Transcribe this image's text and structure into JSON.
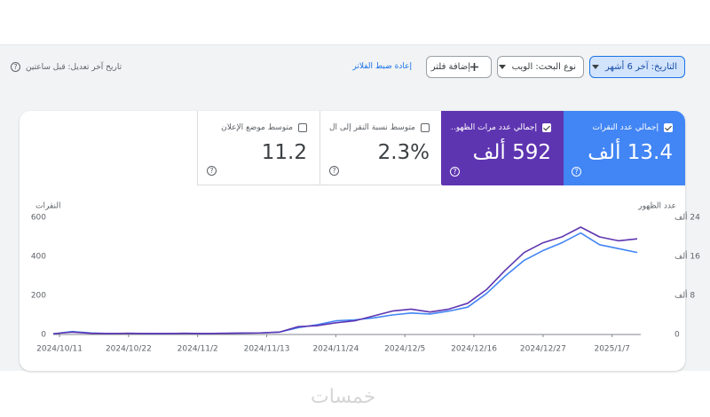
{
  "toolbar": {
    "date_filter": "التاريخ: آخر 6 أشهر",
    "search_type": "نوع البحث: الويب",
    "add_filter": "إضافة فلتر",
    "reset_filters": "إعادة ضبط الفلاتر",
    "last_updated": "تاريخ آخر تعديل: قبل ساعتين"
  },
  "metrics": [
    {
      "label": "إجمالي عدد النقرات",
      "value": "13.4 ألف"
    },
    {
      "label": "إجمالي عدد مرات الظهو...",
      "value": "592 ألف"
    },
    {
      "label": "متوسط نسبة النقر إلى ال...",
      "value": "2.3%"
    },
    {
      "label": "متوسط موضع الإعلان",
      "value": "11.2"
    }
  ],
  "watermark": "خمسات",
  "chart_data": {
    "type": "line",
    "y_label": "النقرات",
    "y2_label": "عدد الظهور",
    "x": [
      "2024/10/10",
      "2024/10/13",
      "2024/10/16",
      "2024/10/19",
      "2024/10/22",
      "2024/10/25",
      "2024/10/28",
      "2024/10/31",
      "2024/11/3",
      "2024/11/6",
      "2024/11/9",
      "2024/11/12",
      "2024/11/15",
      "2024/11/18",
      "2024/11/21",
      "2024/11/24",
      "2024/11/27",
      "2024/11/30",
      "2024/12/3",
      "2024/12/6",
      "2024/12/9",
      "2024/12/12",
      "2024/12/15",
      "2024/12/18",
      "2024/12/21",
      "2024/12/24",
      "2024/12/27",
      "2024/12/30",
      "2025/1/2",
      "2025/1/5",
      "2025/1/8",
      "2025/1/11"
    ],
    "xlim": [
      "2024/10/10",
      "2025/1/11"
    ],
    "xticks": [
      "2024/10/11",
      "2024/10/22",
      "2024/11/2",
      "2024/11/13",
      "2024/11/24",
      "2024/12/5",
      "2024/12/16",
      "2024/12/27",
      "2025/1/7"
    ],
    "ylim": [
      0,
      600
    ],
    "yticks": [
      0,
      200,
      400,
      600
    ],
    "y2lim": [
      0,
      24000
    ],
    "y2ticks": [
      0,
      {
        "value": 8000,
        "label": "8 ألف"
      },
      {
        "value": 16000,
        "label": "16 ألف"
      },
      {
        "value": 24000,
        "label": "24 ألف"
      }
    ],
    "grid": false,
    "series": [
      {
        "name": "إجمالي عدد النقرات",
        "color": "#4285f4",
        "values": [
          3,
          15,
          8,
          5,
          6,
          5,
          5,
          6,
          5,
          6,
          7,
          8,
          12,
          35,
          50,
          70,
          75,
          85,
          100,
          110,
          105,
          120,
          140,
          210,
          300,
          380,
          430,
          470,
          520,
          460,
          440,
          420
        ]
      },
      {
        "name": "إجمالي عدد مرات الظهو...",
        "color": "#5e35b1",
        "axis": "y2",
        "values": [
          160,
          480,
          240,
          200,
          240,
          200,
          200,
          240,
          200,
          240,
          280,
          320,
          480,
          1600,
          1800,
          2400,
          2800,
          3800,
          4800,
          5200,
          4600,
          5200,
          6400,
          9200,
          13200,
          16800,
          18800,
          20000,
          22000,
          20000,
          19200,
          19600
        ]
      }
    ]
  }
}
